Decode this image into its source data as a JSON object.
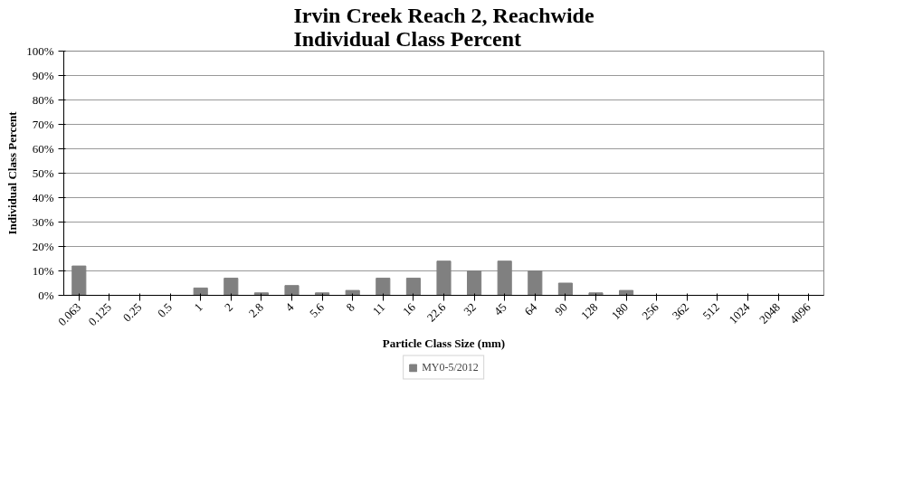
{
  "chart_data": {
    "type": "bar",
    "title": "Irvin Creek Reach 2, Reachwide\nIndividual Class Percent",
    "xlabel": "Particle Class Size (mm)",
    "ylabel": "Individual Class Percent",
    "categories": [
      "0.063",
      "0.125",
      "0.25",
      "0.5",
      "1",
      "2",
      "2.8",
      "4",
      "5.6",
      "8",
      "11",
      "16",
      "22.6",
      "32",
      "45",
      "64",
      "90",
      "128",
      "180",
      "256",
      "362",
      "512",
      "1024",
      "2048",
      "4096"
    ],
    "series": [
      {
        "name": "MY0-5/2012",
        "color": "#808080",
        "values": [
          12,
          0,
          0,
          0,
          3,
          7,
          1,
          4,
          1,
          2,
          7,
          7,
          14,
          10,
          14,
          10,
          5,
          1,
          2,
          0,
          0,
          0,
          0,
          0,
          0
        ]
      }
    ],
    "ylim": [
      0,
      100
    ],
    "yticks": [
      {
        "value": 0,
        "label": "0%"
      },
      {
        "value": 10,
        "label": "10%"
      },
      {
        "value": 20,
        "label": "20%"
      },
      {
        "value": 30,
        "label": "30%"
      },
      {
        "value": 40,
        "label": "40%"
      },
      {
        "value": 50,
        "label": "50%"
      },
      {
        "value": 60,
        "label": "60%"
      },
      {
        "value": 70,
        "label": "70%"
      },
      {
        "value": 80,
        "label": "80%"
      },
      {
        "value": 90,
        "label": "90%"
      },
      {
        "value": 100,
        "label": "100%"
      }
    ],
    "grid": "y",
    "legend": "bottom"
  }
}
